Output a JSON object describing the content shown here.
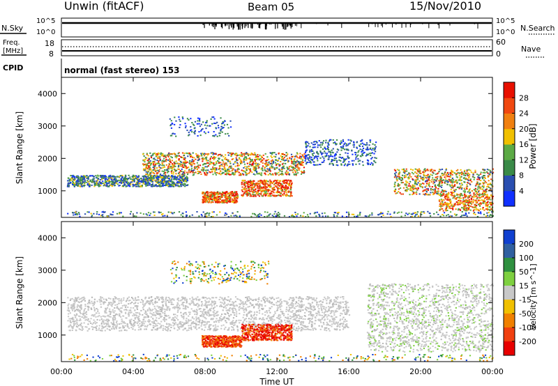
{
  "header": {
    "station": "Unwin (fitACF)",
    "beam": "Beam 05",
    "date": "15/Nov/2010"
  },
  "panels": {
    "nsky": {
      "label": "N.Sky",
      "ticks_left": [
        "10^5",
        "10^0"
      ],
      "ticks_right": [
        "10^5",
        "10^0"
      ],
      "right_label": "N.Search"
    },
    "freq": {
      "label_line1": "Freq.",
      "label_line2": "[MHz]",
      "ticks_left": [
        "18",
        "8"
      ],
      "ticks_right": [
        "60",
        "0"
      ],
      "right_label": "Nave"
    },
    "cpid": {
      "label": "CPID",
      "text": "normal (fast stereo) 153"
    }
  },
  "chart_data": [
    {
      "type": "heatmap",
      "name": "power",
      "ylabel": "Slant Range [km]",
      "xlabel": "Time UT",
      "xlim": [
        0,
        24
      ],
      "ylim": [
        180,
        4500
      ],
      "y_ticks": [
        1000,
        2000,
        3000,
        4000
      ],
      "colorbar": {
        "label": "Power [dB]",
        "ticks": [
          "4",
          "8",
          "12",
          "16",
          "20",
          "24",
          "28"
        ],
        "colors": [
          "#1030ff",
          "#2a4fb0",
          "#3a8a48",
          "#5caa45",
          "#f0c000",
          "#f08010",
          "#f04810",
          "#e81000"
        ]
      },
      "regions": [
        {
          "t": [
            0.3,
            7.0
          ],
          "r": [
            1150,
            1500
          ],
          "level": "mixed"
        },
        {
          "t": [
            4.5,
            13.5
          ],
          "r": [
            1500,
            2200
          ],
          "level": "high"
        },
        {
          "t": [
            7.8,
            9.8
          ],
          "r": [
            650,
            1000
          ],
          "level": "very-high"
        },
        {
          "t": [
            10.0,
            12.8
          ],
          "r": [
            850,
            1350
          ],
          "level": "very-high"
        },
        {
          "t": [
            13.5,
            17.5
          ],
          "r": [
            1800,
            2600
          ],
          "level": "low"
        },
        {
          "t": [
            18.5,
            24.0
          ],
          "r": [
            400,
            1700
          ],
          "level": "high"
        }
      ]
    },
    {
      "type": "heatmap",
      "name": "velocity",
      "ylabel": "Slant Range [km]",
      "xlabel": "Time UT",
      "xlim": [
        0,
        24
      ],
      "ylim": [
        180,
        4500
      ],
      "y_ticks": [
        1000,
        2000,
        3000,
        4000
      ],
      "x_ticks": [
        "00:00",
        "04:00",
        "08:00",
        "12:00",
        "16:00",
        "20:00",
        "00:00"
      ],
      "colorbar": {
        "label": "Velocity [m s^-1]",
        "ticks": [
          "200",
          "100",
          "50",
          "15",
          "-15",
          "-50",
          "-100",
          "-200"
        ],
        "colors": [
          "#1040d0",
          "#3060a0",
          "#2f9040",
          "#7ed040",
          "#c8c8c8",
          "#f0c000",
          "#f08000",
          "#f04010",
          "#e80000"
        ]
      },
      "regions": [
        {
          "t": [
            0.3,
            16.0
          ],
          "r": [
            1150,
            2200
          ],
          "v": "ground (-15 to 15)"
        },
        {
          "t": [
            7.8,
            10.0
          ],
          "r": [
            650,
            1000
          ],
          "v": "-100 to -50"
        },
        {
          "t": [
            10.0,
            12.8
          ],
          "r": [
            850,
            1350
          ],
          "v": "-200 to -100"
        },
        {
          "t": [
            17.0,
            24.0
          ],
          "r": [
            500,
            2600
          ],
          "v": "ground (-15 to 15)"
        }
      ]
    }
  ]
}
